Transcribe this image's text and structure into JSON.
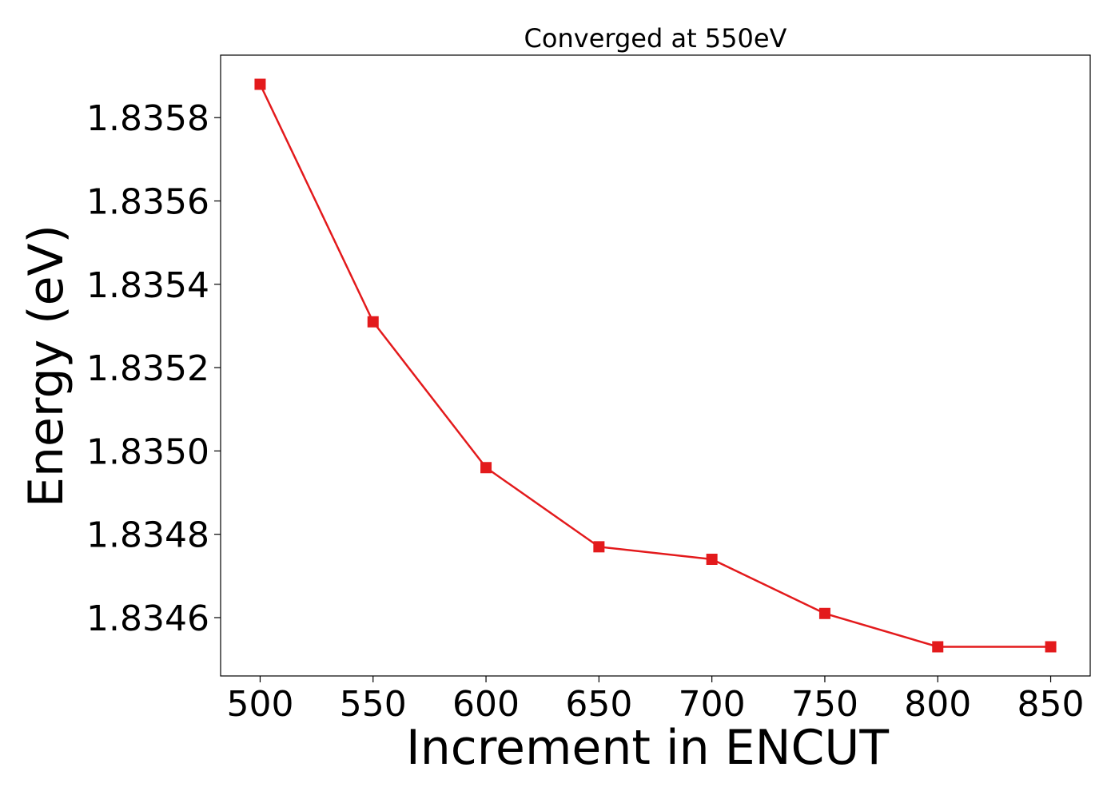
{
  "chart_data": {
    "type": "line",
    "title": "Converged at 550eV",
    "xlabel": "Increment in ENCUT",
    "ylabel": "Energy (eV)",
    "x": [
      500,
      550,
      600,
      650,
      700,
      750,
      800,
      850
    ],
    "series": [
      {
        "values": [
          1.83588,
          1.83531,
          1.83496,
          1.83477,
          1.83474,
          1.83461,
          1.83453,
          1.83453
        ],
        "color": "#e31a1c",
        "marker": "square"
      }
    ],
    "xticks": [
      500,
      550,
      600,
      650,
      700,
      750,
      800,
      850
    ],
    "xtick_labels": [
      "500",
      "550",
      "600",
      "650",
      "700",
      "750",
      "800",
      "850"
    ],
    "yticks": [
      1.8346,
      1.8348,
      1.835,
      1.8352,
      1.8354,
      1.8356,
      1.8358
    ],
    "ytick_labels": [
      "1.8346",
      "1.8348",
      "1.8350",
      "1.8352",
      "1.8354",
      "1.8356",
      "1.8358"
    ],
    "xlim": [
      482.5,
      867.5
    ],
    "ylim": [
      1.83446,
      1.83595
    ],
    "grid": false
  }
}
